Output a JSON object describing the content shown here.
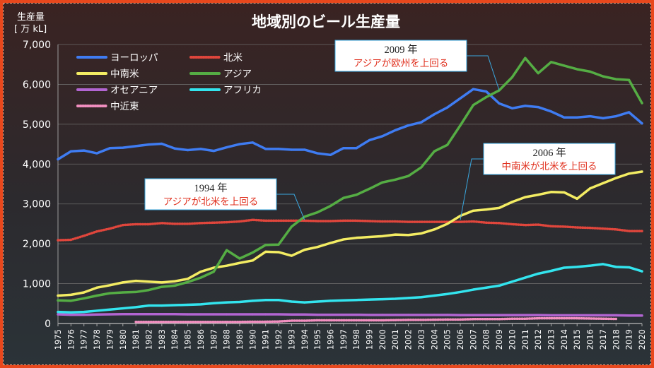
{
  "chart_data": {
    "type": "line",
    "title": "地域別のビール生産量",
    "ylabel": "生産量",
    "yunit": "[ 万 kL]",
    "ylim": [
      0,
      7000
    ],
    "yticks": [
      "0",
      "1,000",
      "2,000",
      "3,000",
      "4,000",
      "5,000",
      "6,000",
      "7,000"
    ],
    "grid": true,
    "legend_position": "top-left",
    "x": [
      1975,
      1976,
      1977,
      1978,
      1979,
      1980,
      1981,
      1982,
      1983,
      1984,
      1985,
      1986,
      1987,
      1988,
      1989,
      1990,
      1991,
      1992,
      1993,
      1994,
      1995,
      1996,
      1997,
      1998,
      1999,
      2000,
      2001,
      2002,
      2003,
      2004,
      2005,
      2006,
      2007,
      2008,
      2009,
      2010,
      2011,
      2012,
      2013,
      2014,
      2015,
      2016,
      2017,
      2018,
      2019,
      2020
    ],
    "series": [
      {
        "name": "ヨーロッパ",
        "color": "#3f7cf2",
        "values": [
          4120,
          4320,
          4340,
          4270,
          4400,
          4410,
          4450,
          4490,
          4510,
          4390,
          4350,
          4380,
          4330,
          4420,
          4500,
          4540,
          4380,
          4380,
          4360,
          4360,
          4270,
          4230,
          4400,
          4400,
          4600,
          4700,
          4850,
          4970,
          5050,
          5250,
          5420,
          5650,
          5880,
          5820,
          5520,
          5400,
          5460,
          5430,
          5320,
          5170,
          5170,
          5200,
          5150,
          5200,
          5300,
          5020
        ]
      },
      {
        "name": "北米",
        "color": "#e0463c",
        "values": [
          2090,
          2100,
          2200,
          2310,
          2380,
          2470,
          2490,
          2490,
          2520,
          2500,
          2500,
          2520,
          2530,
          2540,
          2560,
          2600,
          2580,
          2580,
          2580,
          2580,
          2570,
          2570,
          2580,
          2580,
          2570,
          2560,
          2560,
          2550,
          2550,
          2550,
          2550,
          2550,
          2560,
          2530,
          2520,
          2490,
          2470,
          2480,
          2440,
          2430,
          2410,
          2400,
          2380,
          2360,
          2320,
          2320
        ]
      },
      {
        "name": "中南米",
        "color": "#f3ec63",
        "values": [
          700,
          720,
          780,
          900,
          960,
          1030,
          1070,
          1050,
          1030,
          1060,
          1120,
          1300,
          1400,
          1450,
          1520,
          1580,
          1800,
          1790,
          1700,
          1850,
          1920,
          2020,
          2110,
          2150,
          2170,
          2190,
          2230,
          2220,
          2260,
          2360,
          2500,
          2700,
          2830,
          2860,
          2900,
          3050,
          3170,
          3230,
          3300,
          3290,
          3130,
          3390,
          3520,
          3650,
          3760,
          3810
        ]
      },
      {
        "name": "アジア",
        "color": "#55ad44",
        "values": [
          580,
          570,
          630,
          700,
          760,
          780,
          790,
          840,
          920,
          950,
          1040,
          1150,
          1300,
          1840,
          1630,
          1780,
          1970,
          1980,
          2430,
          2680,
          2790,
          2950,
          3150,
          3230,
          3380,
          3540,
          3610,
          3700,
          3920,
          4320,
          4480,
          4970,
          5480,
          5680,
          5850,
          6180,
          6660,
          6280,
          6560,
          6470,
          6380,
          6320,
          6200,
          6130,
          6110,
          5530
        ]
      },
      {
        "name": "オセアニア",
        "color": "#b265d2",
        "values": [
          230,
          220,
          220,
          225,
          230,
          235,
          235,
          235,
          235,
          235,
          230,
          230,
          230,
          230,
          230,
          230,
          230,
          230,
          225,
          225,
          220,
          220,
          220,
          220,
          215,
          215,
          215,
          215,
          215,
          215,
          215,
          210,
          210,
          210,
          210,
          210,
          210,
          210,
          205,
          205,
          205,
          205,
          205,
          205,
          200,
          200
        ]
      },
      {
        "name": "アフリカ",
        "color": "#33e4ee",
        "values": [
          290,
          280,
          290,
          320,
          350,
          380,
          410,
          450,
          450,
          460,
          470,
          480,
          510,
          530,
          540,
          570,
          590,
          590,
          550,
          530,
          550,
          570,
          580,
          590,
          600,
          610,
          620,
          640,
          660,
          700,
          740,
          790,
          850,
          900,
          950,
          1050,
          1150,
          1250,
          1320,
          1400,
          1420,
          1450,
          1490,
          1420,
          1410,
          1310
        ]
      },
      {
        "name": "中近東",
        "color": "#f28fc0",
        "values": [
          null,
          null,
          null,
          null,
          null,
          null,
          40,
          40,
          40,
          40,
          40,
          40,
          40,
          40,
          40,
          45,
          45,
          50,
          70,
          70,
          80,
          80,
          80,
          80,
          80,
          80,
          85,
          90,
          90,
          95,
          100,
          100,
          110,
          110,
          110,
          120,
          120,
          130,
          130,
          130,
          130,
          125,
          120,
          115,
          null,
          null
        ]
      }
    ],
    "annotations": [
      {
        "year_label": "2009 年",
        "note": "アジアが欧州を上回る",
        "x": 2009,
        "y": 5850
      },
      {
        "year_label": "1994 年",
        "note": "アジアが北米を上回る",
        "x": 1994,
        "y": 2600
      },
      {
        "year_label": "2006 年",
        "note": "中南米が北米を上回る",
        "x": 2006,
        "y": 2600
      }
    ]
  }
}
